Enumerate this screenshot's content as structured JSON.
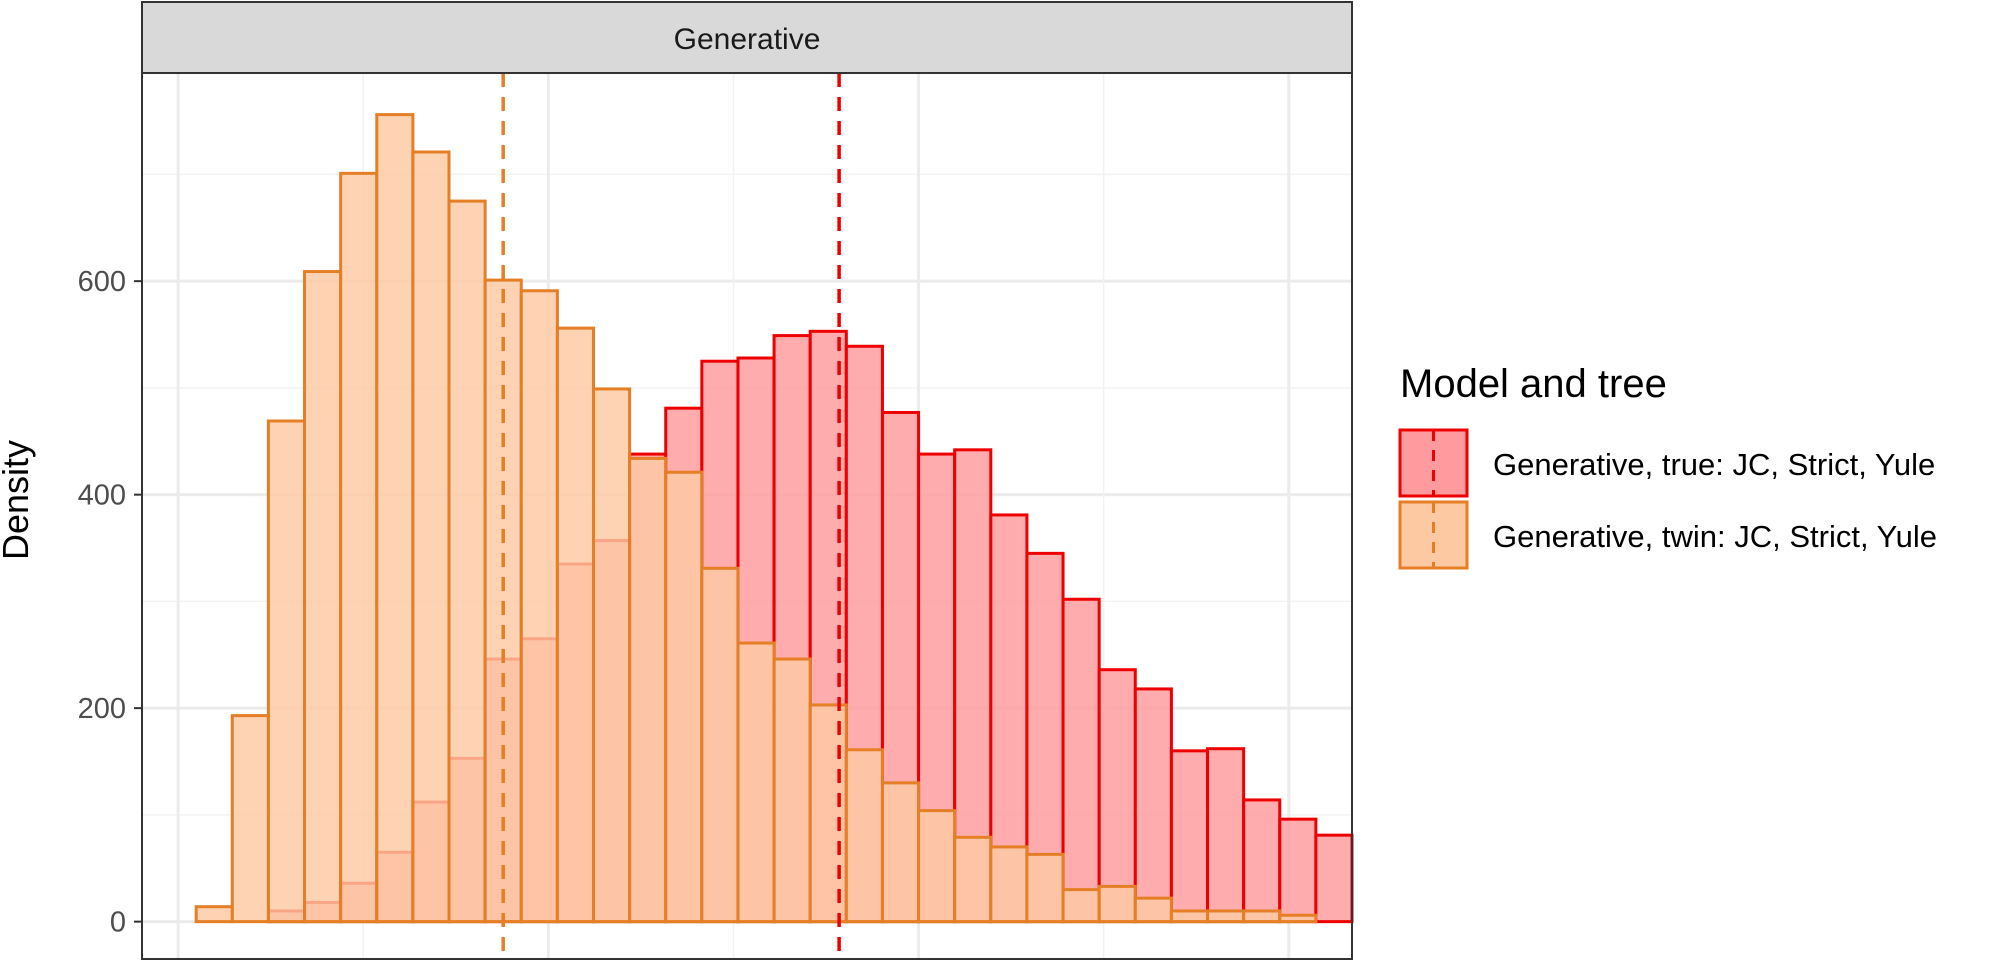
{
  "chart_data": {
    "type": "bar",
    "facet_title": "Generative",
    "xlabel": "",
    "ylabel": "Density",
    "ylim": [
      -35,
      795
    ],
    "y_ticks": [
      0,
      200,
      400,
      600
    ],
    "grid": true,
    "bins": {
      "start_bin": -0.5,
      "count": 32,
      "x_range": [
        -2.0,
        31.5
      ],
      "major_x": [
        -1,
        9.25,
        19.5,
        29.75
      ],
      "minor_x": [
        4.125,
        14.375,
        24.625
      ]
    },
    "legend": {
      "title": "Model and tree",
      "placement": "right"
    },
    "series": [
      {
        "name": "Generative, true: JC, Strict, Yule",
        "fill": "#ff9a9e",
        "stroke": "#ee0000",
        "mean_line_x": 17.3,
        "values": [
          0,
          0,
          10,
          18,
          36,
          65,
          112,
          153,
          246,
          265,
          335,
          357,
          438,
          481,
          525,
          528,
          549,
          553,
          539,
          477,
          438,
          442,
          381,
          345,
          302,
          236,
          218,
          160,
          162,
          114,
          96,
          81
        ]
      },
      {
        "name": "Generative, twin: JC, Strict, Yule",
        "fill": "#fdc9a3",
        "stroke": "#e57e25",
        "mean_line_x": 8.0,
        "values": [
          14,
          193,
          469,
          609,
          701,
          756,
          721,
          675,
          601,
          591,
          556,
          499,
          434,
          421,
          331,
          261,
          246,
          203,
          161,
          130,
          104,
          79,
          70,
          63,
          30,
          33,
          22,
          10,
          10,
          10,
          6,
          0
        ]
      }
    ]
  }
}
